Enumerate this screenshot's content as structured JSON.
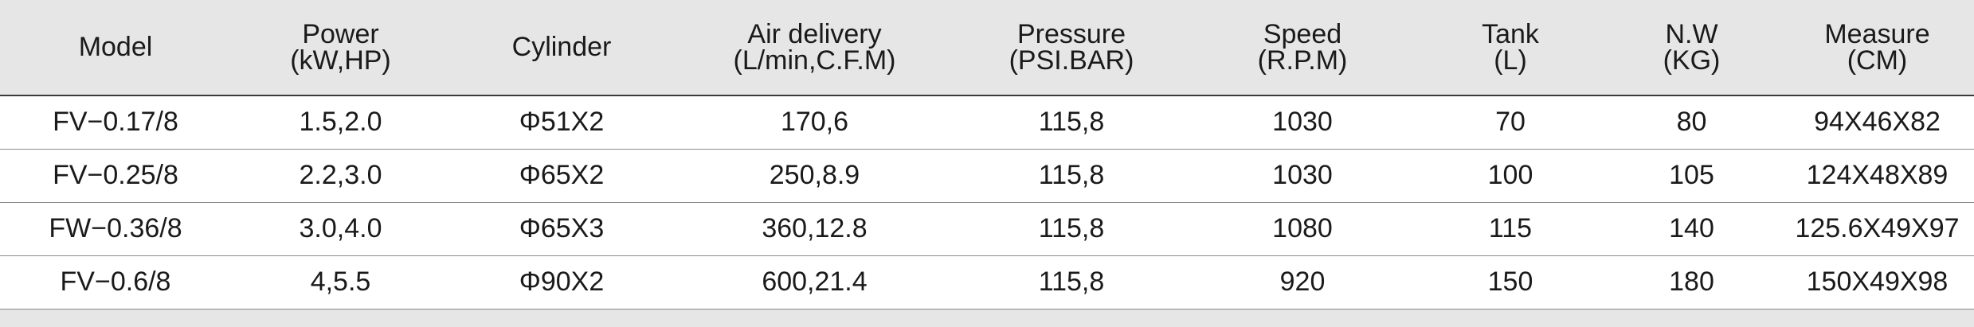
{
  "columns": [
    {
      "name": "Model",
      "unit": ""
    },
    {
      "name": "Power",
      "unit": "(kW,HP)"
    },
    {
      "name": "Cylinder",
      "unit": ""
    },
    {
      "name": "Air delivery",
      "unit": "(L/min,C.F.M)"
    },
    {
      "name": "Pressure",
      "unit": "(PSI.BAR)"
    },
    {
      "name": "Speed",
      "unit": "(R.P.M)"
    },
    {
      "name": "Tank",
      "unit": "(L)"
    },
    {
      "name": "N.W",
      "unit": "(KG)"
    },
    {
      "name": "Measure",
      "unit": "(CM)"
    }
  ],
  "rows": [
    [
      "FV−0.17/8",
      "1.5,2.0",
      "Φ51X2",
      "170,6",
      "115,8",
      "1030",
      "70",
      "80",
      "94X46X82"
    ],
    [
      "FV−0.25/8",
      "2.2,3.0",
      "Φ65X2",
      "250,8.9",
      "115,8",
      "1030",
      "100",
      "105",
      "124X48X89"
    ],
    [
      "FW−0.36/8",
      "3.0,4.0",
      "Φ65X3",
      "360,12.8",
      "115,8",
      "1080",
      "115",
      "140",
      "125.6X49X97"
    ],
    [
      "FV−0.6/8",
      "4,5.5",
      "Φ90X2",
      "600,21.4",
      "115,8",
      "920",
      "150",
      "180",
      "150X49X98"
    ]
  ]
}
